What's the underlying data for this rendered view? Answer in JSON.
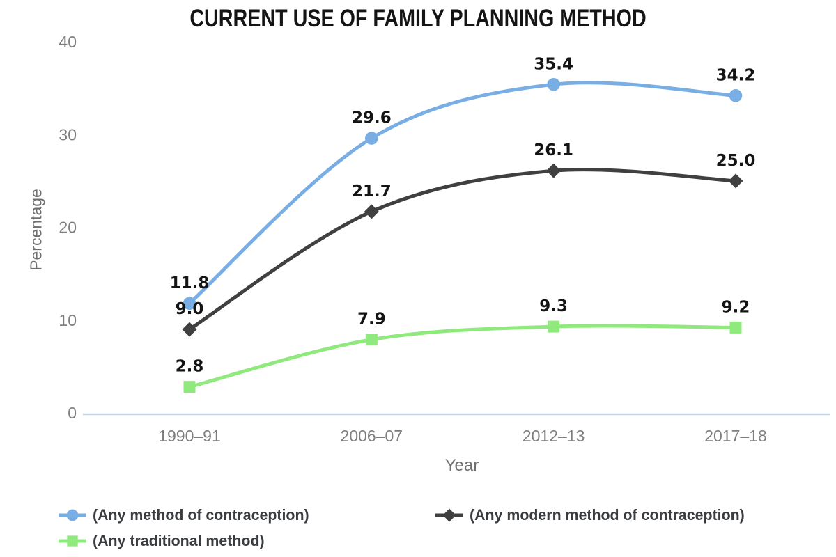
{
  "chart_data": {
    "type": "line",
    "title": "CURRENT USE OF FAMILY PLANNING METHOD",
    "xlabel": "Year",
    "ylabel": "Percentage",
    "categories": [
      "1990–91",
      "2006–07",
      "2012–13",
      "2017–18"
    ],
    "series": [
      {
        "name": "(Any method of contraception)",
        "values": [
          11.8,
          29.6,
          35.4,
          34.2
        ],
        "color": "#79AEE5",
        "marker": "circle"
      },
      {
        "name": "(Any modern method of contraception)",
        "values": [
          9.0,
          21.7,
          26.1,
          25.0
        ],
        "color": "#404040",
        "marker": "diamond"
      },
      {
        "name": "(Any traditional method)",
        "values": [
          2.8,
          7.9,
          9.3,
          9.2
        ],
        "color": "#8FE97D",
        "marker": "square"
      }
    ],
    "ylim": [
      0,
      40
    ],
    "yticks": [
      0,
      10,
      20,
      30,
      40
    ],
    "grid": false,
    "smooth": true,
    "legend_position": "bottom",
    "data_label_decimals": 1
  },
  "styles": {
    "axis_line_color": "#C5D3EA",
    "tick_text_color": "#7E7E7E",
    "axis_title_color": "#6F6F6F",
    "data_label_color": "#141414",
    "legend_text_color": "#3A3C3F",
    "title_color": "#141414",
    "background": "#FFFFFF"
  }
}
